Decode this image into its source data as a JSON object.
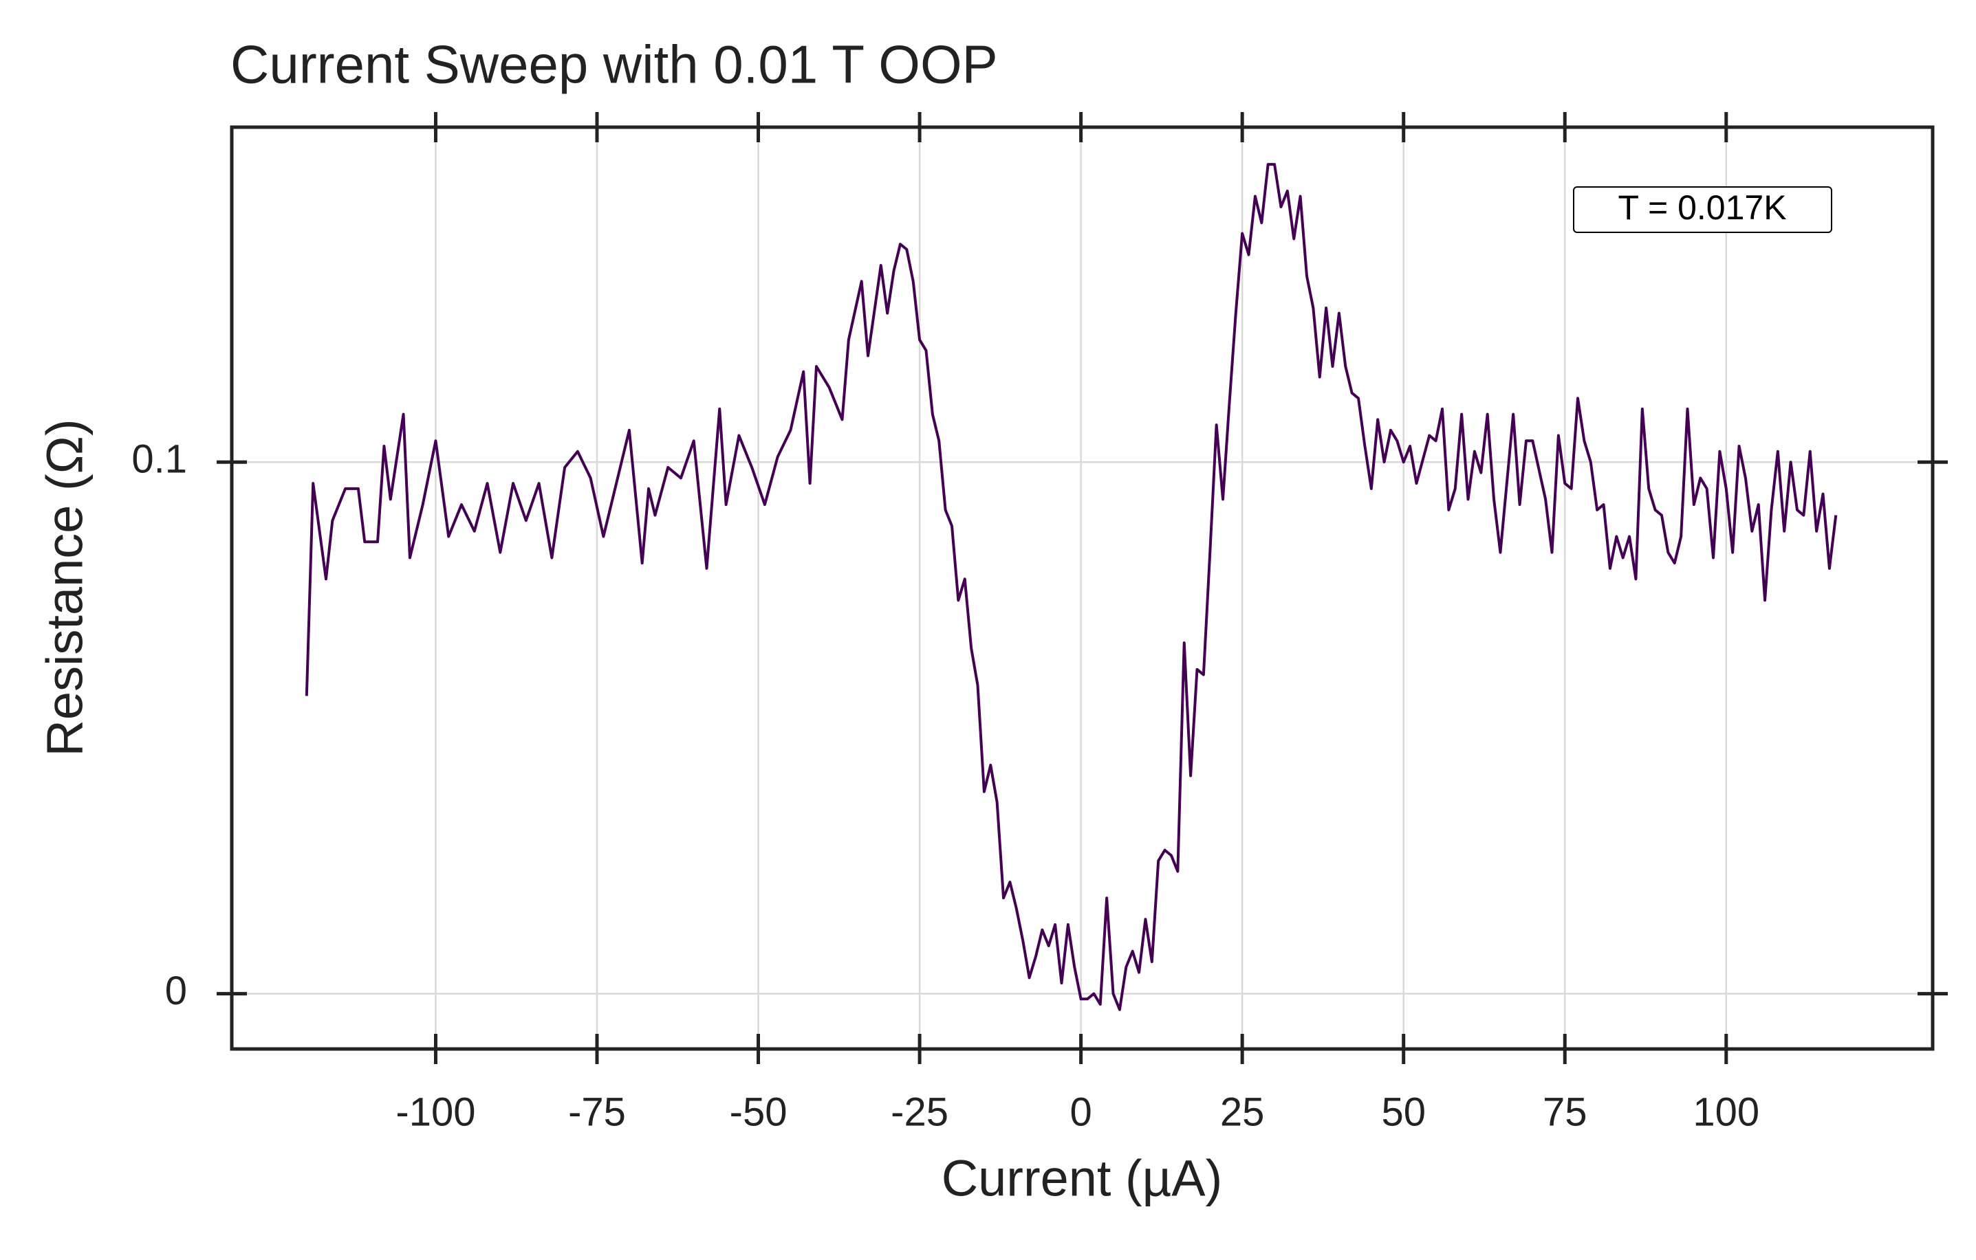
{
  "chart_data": {
    "type": "line",
    "title": "Current Sweep with 0.01 T OOP",
    "xlabel": "Current (µA)",
    "ylabel": "Resistance (Ω)",
    "annotation": "T = 0.017K",
    "color": "#440154",
    "grid": true,
    "xlim": [
      -131.6,
      132
    ],
    "ylim": [
      -0.0104,
      0.163
    ],
    "xticks": [
      -100,
      -75,
      -50,
      -25,
      0,
      25,
      50,
      75,
      100
    ],
    "yticks": [
      0,
      0.1
    ],
    "x": [
      -120,
      -119,
      -117,
      -116,
      -114,
      -112,
      -111,
      -109,
      -108,
      -107,
      -105,
      -104,
      -102,
      -100,
      -98,
      -96,
      -94,
      -92,
      -90,
      -88,
      -86,
      -84,
      -82,
      -80,
      -78,
      -76,
      -74,
      -72,
      -70,
      -68,
      -67,
      -66,
      -64,
      -62,
      -60,
      -58,
      -56,
      -55,
      -53,
      -51,
      -49,
      -47,
      -45,
      -43,
      -42,
      -41,
      -39,
      -37,
      -36,
      -34,
      -33,
      -31,
      -30,
      -29,
      -28,
      -27,
      -26,
      -25,
      -24,
      -23,
      -22,
      -21,
      -20,
      -19,
      -18,
      -17,
      -16,
      -15,
      -14,
      -13,
      -12,
      -11,
      -10,
      -9,
      -8,
      -7,
      -6,
      -5,
      -4,
      -3,
      -2,
      -1,
      0,
      1,
      2,
      3,
      4,
      5,
      6,
      7,
      8,
      9,
      10,
      11,
      12,
      13,
      14,
      15,
      16,
      17,
      18,
      19,
      20,
      21,
      22,
      23,
      24,
      25,
      26,
      27,
      28,
      29,
      30,
      31,
      32,
      33,
      34,
      35,
      36,
      37,
      38,
      39,
      40,
      41,
      42,
      43,
      44,
      45,
      46,
      47,
      48,
      49,
      50,
      51,
      52,
      54,
      55,
      56,
      57,
      58,
      59,
      60,
      61,
      62,
      63,
      64,
      65,
      66,
      67,
      68,
      69,
      70,
      72,
      73,
      74,
      75,
      76,
      77,
      78,
      79,
      80,
      81,
      82,
      83,
      84,
      85,
      86,
      87,
      88,
      89,
      90,
      91,
      92,
      93,
      94,
      95,
      96,
      97,
      98,
      99,
      100,
      101,
      102,
      103,
      104,
      105,
      106,
      107,
      108,
      109,
      110,
      111,
      112,
      113,
      114,
      115,
      116,
      117
    ],
    "values": [
      0.056,
      0.096,
      0.078,
      0.089,
      0.095,
      0.095,
      0.085,
      0.085,
      0.103,
      0.093,
      0.109,
      0.082,
      0.092,
      0.104,
      0.086,
      0.092,
      0.087,
      0.096,
      0.083,
      0.096,
      0.089,
      0.096,
      0.082,
      0.099,
      0.102,
      0.097,
      0.086,
      0.096,
      0.106,
      0.081,
      0.095,
      0.09,
      0.099,
      0.097,
      0.104,
      0.08,
      0.11,
      0.092,
      0.105,
      0.099,
      0.092,
      0.101,
      0.106,
      0.117,
      0.096,
      0.118,
      0.114,
      0.108,
      0.123,
      0.134,
      0.12,
      0.137,
      0.128,
      0.136,
      0.141,
      0.14,
      0.134,
      0.123,
      0.121,
      0.109,
      0.104,
      0.091,
      0.088,
      0.074,
      0.078,
      0.065,
      0.058,
      0.038,
      0.043,
      0.036,
      0.018,
      0.021,
      0.016,
      0.01,
      0.003,
      0.007,
      0.012,
      0.009,
      0.013,
      0.002,
      0.013,
      0.005,
      -0.001,
      -0.001,
      0.0,
      -0.002,
      0.018,
      0.0,
      -0.003,
      0.005,
      0.008,
      0.004,
      0.014,
      0.006,
      0.025,
      0.027,
      0.026,
      0.023,
      0.066,
      0.041,
      0.061,
      0.06,
      0.083,
      0.107,
      0.093,
      0.111,
      0.128,
      0.143,
      0.139,
      0.15,
      0.145,
      0.156,
      0.156,
      0.148,
      0.151,
      0.142,
      0.15,
      0.135,
      0.129,
      0.116,
      0.129,
      0.118,
      0.128,
      0.118,
      0.113,
      0.112,
      0.103,
      0.095,
      0.108,
      0.1,
      0.106,
      0.104,
      0.1,
      0.103,
      0.096,
      0.105,
      0.104,
      0.11,
      0.091,
      0.095,
      0.109,
      0.093,
      0.102,
      0.098,
      0.109,
      0.093,
      0.083,
      0.096,
      0.109,
      0.092,
      0.104,
      0.104,
      0.093,
      0.083,
      0.105,
      0.096,
      0.095,
      0.112,
      0.104,
      0.1,
      0.091,
      0.092,
      0.08,
      0.086,
      0.082,
      0.086,
      0.078,
      0.11,
      0.095,
      0.091,
      0.09,
      0.083,
      0.081,
      0.086,
      0.11,
      0.092,
      0.097,
      0.095,
      0.082,
      0.102,
      0.095,
      0.083,
      0.103,
      0.097,
      0.087,
      0.092,
      0.074,
      0.091,
      0.102,
      0.087,
      0.1,
      0.091,
      0.09,
      0.102,
      0.087,
      0.094,
      0.08,
      0.09
    ]
  }
}
